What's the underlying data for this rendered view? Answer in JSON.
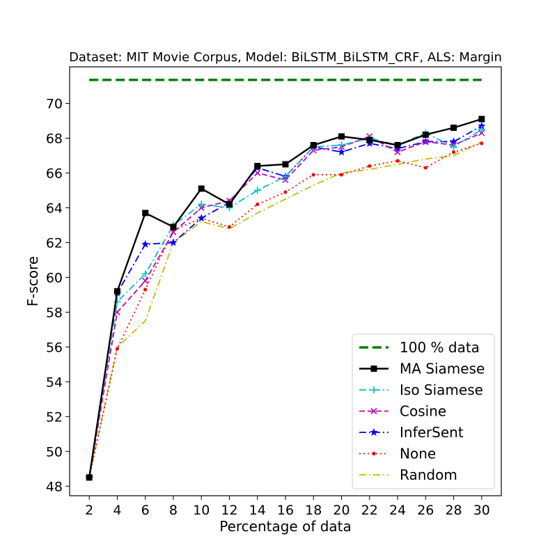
{
  "chart_data": {
    "type": "line",
    "title": "Dataset: MIT Movie Corpus, Model: BiLSTM_BiLSTM_CRF, ALS: Margin",
    "xlabel": "Percentage of data",
    "ylabel": "F-score",
    "x": [
      2,
      4,
      6,
      8,
      10,
      12,
      14,
      16,
      18,
      20,
      22,
      24,
      26,
      28,
      30
    ],
    "xlim": [
      0.6,
      31.4
    ],
    "ylim": [
      47.45,
      72.1
    ],
    "xticks": [
      "2",
      "4",
      "6",
      "8",
      "10",
      "12",
      "14",
      "16",
      "18",
      "20",
      "22",
      "24",
      "26",
      "28",
      "30"
    ],
    "yticks": [
      "48",
      "50",
      "52",
      "54",
      "56",
      "58",
      "60",
      "62",
      "64",
      "66",
      "68",
      "70"
    ],
    "grid": false,
    "legend_position": "lower-right",
    "reference_line": {
      "name": "100 % data",
      "value": 71.35,
      "color": "#008000",
      "style": "dashed"
    },
    "series": [
      {
        "name": "MA Siamese",
        "color": "#000000",
        "style": "solid",
        "marker": "square",
        "values": [
          48.5,
          59.2,
          63.7,
          62.9,
          65.1,
          64.2,
          66.4,
          66.5,
          67.6,
          68.1,
          67.9,
          67.6,
          68.2,
          68.6,
          69.1
        ]
      },
      {
        "name": "Iso Siamese",
        "color": "#00bfbf",
        "style": "dashdot",
        "marker": "plus",
        "values": [
          48.5,
          58.6,
          60.2,
          63.0,
          64.2,
          64.0,
          65.0,
          65.8,
          67.5,
          67.6,
          68.0,
          67.6,
          68.3,
          67.5,
          68.5
        ]
      },
      {
        "name": "Cosine",
        "color": "#bf00bf",
        "style": "dashed",
        "marker": "x",
        "values": [
          48.5,
          58.0,
          59.8,
          62.6,
          64.0,
          64.4,
          66.0,
          65.6,
          67.3,
          67.5,
          68.1,
          67.2,
          67.8,
          67.6,
          68.3
        ]
      },
      {
        "name": "InferSent",
        "color": "#0000ff",
        "style": "dashdot",
        "marker": "star",
        "values": [
          48.5,
          59.1,
          61.9,
          62.0,
          63.4,
          64.3,
          66.3,
          65.8,
          67.5,
          67.2,
          67.7,
          67.4,
          67.8,
          67.8,
          68.7
        ]
      },
      {
        "name": "None",
        "color": "#ff0000",
        "style": "dotted",
        "marker": "dot",
        "values": [
          48.5,
          55.9,
          59.3,
          62.7,
          63.4,
          62.9,
          64.2,
          64.9,
          65.9,
          65.9,
          66.4,
          66.7,
          66.3,
          67.2,
          67.7
        ]
      },
      {
        "name": "Random",
        "color": "#bfbf00",
        "style": "dashdot",
        "marker": "none",
        "values": [
          48.5,
          56.0,
          57.5,
          62.0,
          63.2,
          62.8,
          63.7,
          64.5,
          65.3,
          66.0,
          66.2,
          66.5,
          66.8,
          67.0,
          67.8
        ]
      }
    ]
  }
}
